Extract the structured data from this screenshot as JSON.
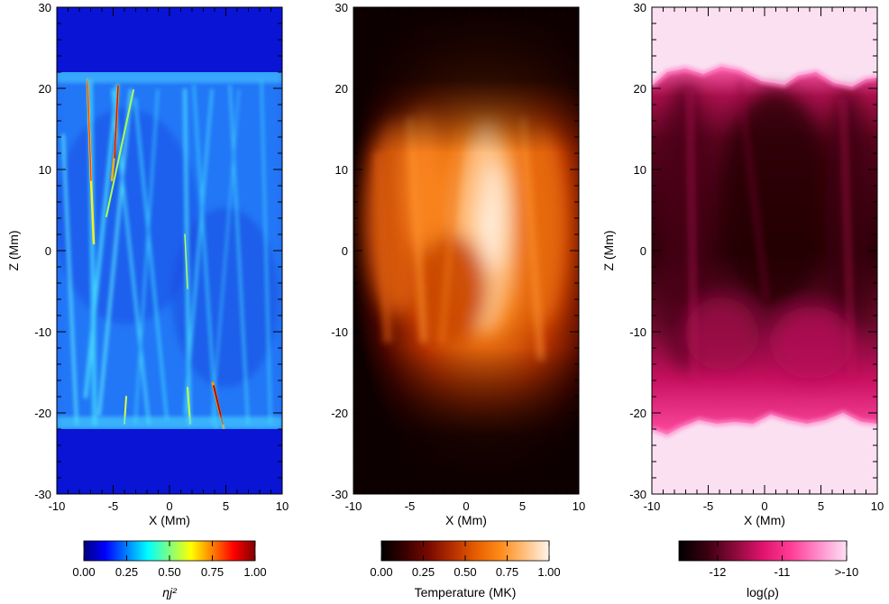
{
  "chart_data": [
    {
      "type": "heatmap",
      "quantity": "current heating",
      "xlabel": "X (Mm)",
      "ylabel": "Z (Mm)",
      "xlim": [
        -10,
        10
      ],
      "ylim": [
        -30,
        30
      ],
      "x_ticks": [
        "-10",
        "-5",
        "0",
        "5",
        "10"
      ],
      "y_ticks": [
        "-30",
        "-20",
        "-10",
        "0",
        "10",
        "20",
        "30"
      ],
      "colormap": "jet",
      "colorbar": {
        "label": "ηj²",
        "range": [
          0,
          1
        ],
        "ticks": [
          "0.00",
          "0.25",
          "0.50",
          "0.75",
          "1.00"
        ],
        "colors": [
          "#00007f",
          "#0000ff",
          "#007fff",
          "#00ffff",
          "#7fff7f",
          "#ffff00",
          "#ff7f00",
          "#ff0000",
          "#7f0000"
        ]
      },
      "structure_z_range": [
        -22,
        22
      ],
      "background_color": "#0a14d4"
    },
    {
      "type": "heatmap",
      "quantity": "temperature",
      "xlabel": "X (Mm)",
      "ylabel": "",
      "xlim": [
        -10,
        10
      ],
      "ylim": [
        -30,
        30
      ],
      "x_ticks": [
        "-10",
        "-5",
        "0",
        "5",
        "10"
      ],
      "y_ticks": [
        "-30",
        "-20",
        "-10",
        "0",
        "10",
        "20",
        "30"
      ],
      "colormap": "hot",
      "colorbar": {
        "label": "Temperature (MK)",
        "range": [
          0,
          1
        ],
        "ticks": [
          "0.00",
          "0.25",
          "0.50",
          "0.75",
          "1.00"
        ],
        "colors": [
          "#000000",
          "#3a0000",
          "#7a0a00",
          "#b83000",
          "#e86000",
          "#ff8c1a",
          "#ffc080",
          "#fff4ea"
        ]
      },
      "peak_temperature_location": {
        "x": 2,
        "z": 4
      },
      "background_color": "#0d0000"
    },
    {
      "type": "heatmap",
      "quantity": "log density",
      "xlabel": "X (Mm)",
      "ylabel": "Z (Mm)",
      "xlim": [
        -10,
        10
      ],
      "ylim": [
        -30,
        30
      ],
      "x_ticks": [
        "-10",
        "-5",
        "0",
        "5",
        "10"
      ],
      "y_ticks": [
        "-30",
        "-20",
        "-10",
        "0",
        "10",
        "20",
        "30"
      ],
      "colormap": "black-magenta-white",
      "colorbar": {
        "label": "log(ρ)",
        "range": [
          -12.6,
          -10
        ],
        "ticks": [
          "-12",
          "-11",
          ">-10"
        ],
        "tick_values": [
          -12,
          -11,
          -10
        ],
        "colors": [
          "#000000",
          "#3a0010",
          "#8a0a3a",
          "#e0136e",
          "#ff3c96",
          "#ff8ccb",
          "#ffe0f4"
        ]
      },
      "structure_z_range": [
        -22,
        22
      ],
      "background_color": "#fbe0f2"
    }
  ]
}
